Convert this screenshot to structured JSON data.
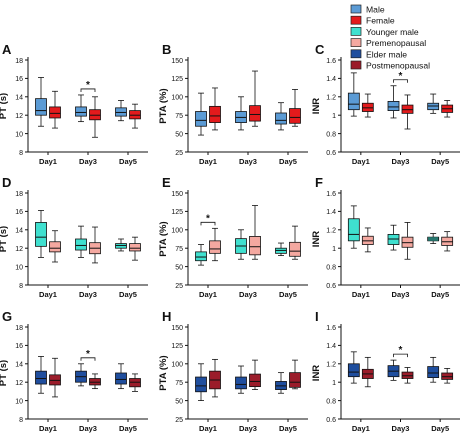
{
  "figure": {
    "legend": [
      {
        "label": "Male",
        "color": "#5b9bd5"
      },
      {
        "label": "Female",
        "color": "#e31a1c"
      },
      {
        "label": "Younger male",
        "color": "#3fe0cf"
      },
      {
        "label": "Premenopausal",
        "color": "#f4a8a0"
      },
      {
        "label": "Elder male",
        "color": "#1f4e9e"
      },
      {
        "label": "Postmenopausal",
        "color": "#9b1c2a"
      }
    ],
    "days": [
      "Day1",
      "Day3",
      "Day5"
    ],
    "significance_mark": "*"
  },
  "chart_data": [
    {
      "type": "box",
      "panel": "A",
      "ylabel": "PT (s)",
      "ylim": [
        8,
        18
      ],
      "yticks": [
        8,
        10,
        12,
        14,
        16,
        18
      ],
      "categories": [
        "Day1",
        "Day3",
        "Day5"
      ],
      "series": [
        {
          "name": "Male",
          "color": "#5b9bd5",
          "boxes": [
            [
              10.8,
              12.0,
              12.5,
              13.8,
              16.1
            ],
            [
              11.3,
              11.9,
              12.3,
              12.9,
              14.2
            ],
            [
              11.4,
              11.9,
              12.3,
              12.8,
              13.6
            ]
          ]
        },
        {
          "name": "Female",
          "color": "#e31a1c",
          "boxes": [
            [
              10.6,
              11.7,
              12.2,
              12.9,
              14.6
            ],
            [
              9.6,
              11.5,
              12.0,
              12.6,
              14.0
            ],
            [
              10.6,
              11.6,
              12.0,
              12.5,
              13.2
            ]
          ]
        }
      ],
      "significance": [
        {
          "category": "Day3",
          "mark": "*"
        }
      ]
    },
    {
      "type": "box",
      "panel": "B",
      "ylabel": "PTA (%)",
      "ylim": [
        25,
        150
      ],
      "yticks": [
        25,
        50,
        75,
        100,
        125,
        150
      ],
      "categories": [
        "Day1",
        "Day3",
        "Day5"
      ],
      "series": [
        {
          "name": "Male",
          "color": "#5b9bd5",
          "boxes": [
            [
              48,
              60,
              68,
              80,
              105
            ],
            [
              55,
              65,
              72,
              80,
              100
            ],
            [
              55,
              63,
              68,
              78,
              92
            ]
          ]
        },
        {
          "name": "Female",
          "color": "#e31a1c",
          "boxes": [
            [
              55,
              65,
              74,
              87,
              112
            ],
            [
              60,
              67,
              76,
              88,
              135
            ],
            [
              60,
              64,
              72,
              84,
              110
            ]
          ]
        }
      ]
    },
    {
      "type": "box",
      "panel": "C",
      "ylabel": "INR",
      "ylim": [
        0.6,
        1.6
      ],
      "yticks": [
        0.6,
        0.8,
        1.0,
        1.2,
        1.4,
        1.6
      ],
      "categories": [
        "Day1",
        "Day3",
        "Day5"
      ],
      "series": [
        {
          "name": "Male",
          "color": "#5b9bd5",
          "boxes": [
            [
              0.99,
              1.06,
              1.12,
              1.24,
              1.46
            ],
            [
              0.97,
              1.05,
              1.09,
              1.15,
              1.32
            ],
            [
              1.02,
              1.06,
              1.1,
              1.13,
              1.23
            ]
          ]
        },
        {
          "name": "Female",
          "color": "#e31a1c",
          "boxes": [
            [
              0.98,
              1.04,
              1.08,
              1.13,
              1.23
            ],
            [
              0.85,
              1.02,
              1.06,
              1.11,
              1.22
            ],
            [
              0.98,
              1.03,
              1.07,
              1.11,
              1.16
            ]
          ]
        }
      ],
      "significance": [
        {
          "category": "Day3",
          "mark": "*"
        }
      ]
    },
    {
      "type": "box",
      "panel": "D",
      "ylabel": "PT (s)",
      "ylim": [
        8,
        18
      ],
      "yticks": [
        8,
        10,
        12,
        14,
        16,
        18
      ],
      "categories": [
        "Day1",
        "Day3",
        "Day5"
      ],
      "series": [
        {
          "name": "Younger male",
          "color": "#3fe0cf",
          "boxes": [
            [
              11.0,
              12.2,
              13.2,
              14.8,
              16.1
            ],
            [
              11.0,
              11.8,
              12.3,
              13.0,
              14.4
            ],
            [
              11.7,
              12.0,
              12.3,
              12.5,
              13.0
            ]
          ]
        },
        {
          "name": "Premenopausal",
          "color": "#f4a8a0",
          "boxes": [
            [
              10.5,
              11.6,
              12.0,
              12.7,
              13.9
            ],
            [
              10.4,
              11.4,
              12.0,
              12.6,
              14.3
            ],
            [
              10.7,
              11.7,
              12.0,
              12.5,
              13.2
            ]
          ]
        }
      ]
    },
    {
      "type": "box",
      "panel": "E",
      "ylabel": "PTA (%)",
      "ylim": [
        25,
        150
      ],
      "yticks": [
        25,
        50,
        75,
        100,
        125,
        150
      ],
      "categories": [
        "Day1",
        "Day3",
        "Day5"
      ],
      "series": [
        {
          "name": "Younger male",
          "color": "#3fe0cf",
          "boxes": [
            [
              52,
              58,
              63,
              70,
              80
            ],
            [
              60,
              68,
              78,
              88,
              100
            ],
            [
              65,
              68,
              72,
              75,
              82
            ]
          ]
        },
        {
          "name": "Premenopausal",
          "color": "#f4a8a0",
          "boxes": [
            [
              58,
              68,
              74,
              85,
              102
            ],
            [
              60,
              66,
              77,
              91,
              133
            ],
            [
              60,
              64,
              71,
              83,
              105
            ]
          ]
        }
      ],
      "significance": [
        {
          "category": "Day1",
          "mark": "*"
        }
      ]
    },
    {
      "type": "box",
      "panel": "F",
      "ylabel": "INR",
      "ylim": [
        0.6,
        1.6
      ],
      "yticks": [
        0.6,
        0.8,
        1.0,
        1.2,
        1.4,
        1.6
      ],
      "categories": [
        "Day1",
        "Day3",
        "Day5"
      ],
      "series": [
        {
          "name": "Younger male",
          "color": "#3fe0cf",
          "boxes": [
            [
              1.0,
              1.08,
              1.15,
              1.32,
              1.46
            ],
            [
              0.98,
              1.04,
              1.1,
              1.15,
              1.25
            ],
            [
              1.05,
              1.08,
              1.1,
              1.12,
              1.16
            ]
          ]
        },
        {
          "name": "Premenopausal",
          "color": "#f4a8a0",
          "boxes": [
            [
              0.96,
              1.04,
              1.08,
              1.13,
              1.22
            ],
            [
              0.88,
              1.01,
              1.06,
              1.12,
              1.28
            ],
            [
              0.97,
              1.03,
              1.07,
              1.12,
              1.18
            ]
          ]
        }
      ]
    },
    {
      "type": "box",
      "panel": "G",
      "ylabel": "PT (s)",
      "ylim": [
        8,
        18
      ],
      "yticks": [
        8,
        10,
        12,
        14,
        16,
        18
      ],
      "categories": [
        "Day1",
        "Day3",
        "Day5"
      ],
      "series": [
        {
          "name": "Elder male",
          "color": "#1f4e9e",
          "boxes": [
            [
              10.8,
              11.8,
              12.4,
              13.2,
              14.8
            ],
            [
              11.6,
              12.0,
              12.6,
              13.2,
              14.0
            ],
            [
              11.3,
              11.8,
              12.3,
              13.0,
              14.0
            ]
          ]
        },
        {
          "name": "Postmenopausal",
          "color": "#9b1c2a",
          "boxes": [
            [
              10.4,
              11.7,
              12.2,
              12.8,
              14.6
            ],
            [
              11.3,
              11.7,
              12.0,
              12.4,
              12.9
            ],
            [
              11.0,
              11.5,
              12.0,
              12.4,
              12.9
            ]
          ]
        }
      ],
      "significance": [
        {
          "category": "Day3",
          "mark": "*"
        }
      ]
    },
    {
      "type": "box",
      "panel": "H",
      "ylabel": "PTA (%)",
      "ylim": [
        25,
        150
      ],
      "yticks": [
        25,
        50,
        75,
        100,
        125,
        150
      ],
      "categories": [
        "Day1",
        "Day3",
        "Day5"
      ],
      "series": [
        {
          "name": "Elder male",
          "color": "#1f4e9e",
          "boxes": [
            [
              50,
              62,
              70,
              82,
              100
            ],
            [
              60,
              66,
              72,
              82,
              97
            ],
            [
              60,
              65,
              70,
              76,
              88
            ]
          ]
        },
        {
          "name": "Postmenopausal",
          "color": "#9b1c2a",
          "boxes": [
            [
              55,
              66,
              78,
              90,
              106
            ],
            [
              65,
              69,
              76,
              86,
              105
            ],
            [
              66,
              68,
              75,
              88,
              105
            ]
          ]
        }
      ]
    },
    {
      "type": "box",
      "panel": "I",
      "ylabel": "INR",
      "ylim": [
        0.6,
        1.6
      ],
      "yticks": [
        0.6,
        0.8,
        1.0,
        1.2,
        1.4,
        1.6
      ],
      "categories": [
        "Day1",
        "Day3",
        "Day5"
      ],
      "series": [
        {
          "name": "Elder male",
          "color": "#1f4e9e",
          "boxes": [
            [
              0.99,
              1.06,
              1.11,
              1.2,
              1.33
            ],
            [
              1.02,
              1.06,
              1.12,
              1.18,
              1.24
            ],
            [
              1.0,
              1.05,
              1.1,
              1.17,
              1.27
            ]
          ]
        },
        {
          "name": "Postmenopausal",
          "color": "#9b1c2a",
          "boxes": [
            [
              0.95,
              1.04,
              1.09,
              1.14,
              1.27
            ],
            [
              0.99,
              1.04,
              1.07,
              1.11,
              1.16
            ],
            [
              0.99,
              1.03,
              1.06,
              1.1,
              1.15
            ]
          ]
        }
      ],
      "significance": [
        {
          "category": "Day3",
          "mark": "*"
        }
      ]
    }
  ]
}
